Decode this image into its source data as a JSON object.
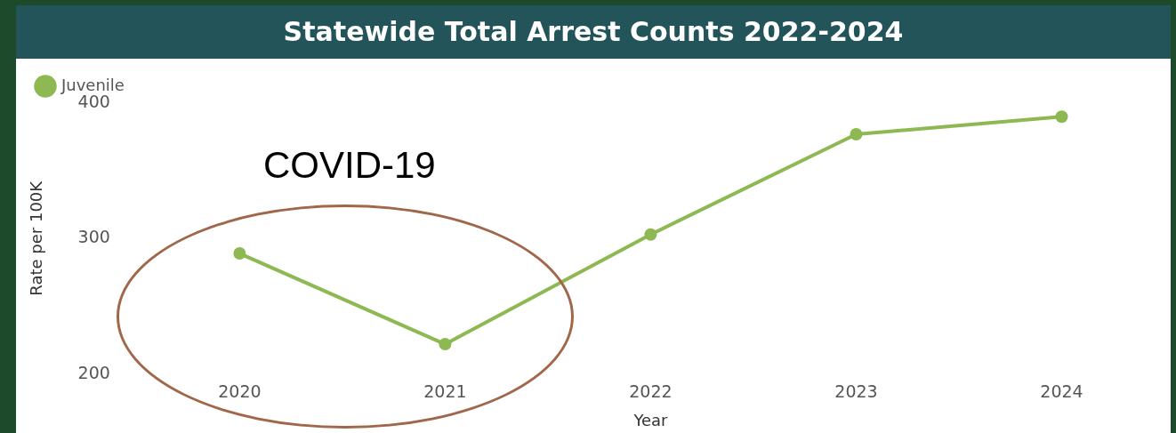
{
  "chart_data": {
    "type": "line",
    "title": "Statewide Total Arrest Counts 2022-2024",
    "xlabel": "Year",
    "ylabel": "Rate per 100K",
    "categories": [
      "2020",
      "2021",
      "2022",
      "2023",
      "2024"
    ],
    "series": [
      {
        "name": "Juvenile",
        "color": "#8db852",
        "values": [
          289,
          222,
          303,
          377,
          390
        ]
      }
    ],
    "ylim": [
      200,
      400
    ],
    "yticks": [
      200,
      300,
      400
    ],
    "grid": false,
    "legend": "top left",
    "marker": "circle",
    "annotations": [
      "COVID-19"
    ]
  }
}
